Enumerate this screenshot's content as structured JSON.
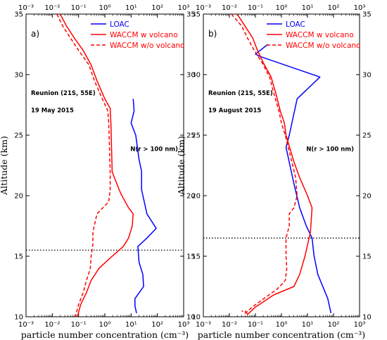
{
  "chart_data": [
    {
      "type": "line",
      "panel_label": "a)",
      "xlabel": "particle number concentration (cm⁻³)",
      "ylabel": "Altitude (km)",
      "x_scale": "log",
      "xlim": [
        0.001,
        1000
      ],
      "ylim": [
        10,
        35
      ],
      "x_ticks": [
        "10⁻³",
        "10⁻²",
        "10⁻¹",
        "10⁰",
        "10¹",
        "10²",
        "10³"
      ],
      "y_ticks": [
        "10",
        "15",
        "20",
        "25",
        "30",
        "35"
      ],
      "legend_position": "top-right",
      "annotations": [
        "Reunion (21S, 55E)",
        "19 May 2015",
        "N(r > 100 nm)"
      ],
      "tropopause_km": 15.5,
      "series": [
        {
          "name": "LOAC",
          "color": "#0000ff",
          "style": "solid",
          "points": [
            [
              12,
              28
            ],
            [
              13,
              27
            ],
            [
              10,
              26
            ],
            [
              15,
              25
            ],
            [
              20,
              23
            ],
            [
              25,
              22
            ],
            [
              25,
              20.5
            ],
            [
              40,
              18.5
            ],
            [
              90,
              17.3
            ],
            [
              40,
              16.5
            ],
            [
              18,
              15.8
            ],
            [
              20,
              14.5
            ],
            [
              28,
              13.5
            ],
            [
              30,
              12.5
            ],
            [
              14,
              11.5
            ],
            [
              14,
              10.9
            ],
            [
              16,
              10.3
            ]
          ]
        },
        {
          "name": "WACCM w volcano",
          "color": "#ff0000",
          "style": "solid",
          "points": [
            [
              0.02,
              35
            ],
            [
              0.035,
              34
            ],
            [
              0.07,
              33
            ],
            [
              0.15,
              32
            ],
            [
              0.3,
              30.8
            ],
            [
              0.5,
              29.5
            ],
            [
              1.0,
              28
            ],
            [
              1.6,
              27.2
            ],
            [
              1.7,
              26
            ],
            [
              1.8,
              24
            ],
            [
              1.9,
              22
            ],
            [
              2.2,
              21.6
            ],
            [
              4,
              20.2
            ],
            [
              8,
              19
            ],
            [
              12,
              18.5
            ],
            [
              11,
              17.5
            ],
            [
              8,
              16.5
            ],
            [
              5,
              15.8
            ],
            [
              1.5,
              14.8
            ],
            [
              0.6,
              14
            ],
            [
              0.3,
              13
            ],
            [
              0.2,
              12
            ],
            [
              0.12,
              11
            ],
            [
              0.09,
              10
            ]
          ]
        },
        {
          "name": "WACCM w/o volcano",
          "color": "#ff0000",
          "style": "dashed",
          "points": [
            [
              0.015,
              35
            ],
            [
              0.025,
              34
            ],
            [
              0.05,
              33
            ],
            [
              0.1,
              32
            ],
            [
              0.25,
              30.8
            ],
            [
              0.4,
              29.5
            ],
            [
              0.8,
              28
            ],
            [
              1.3,
              27
            ],
            [
              1.4,
              26
            ],
            [
              1.5,
              24
            ],
            [
              1.6,
              22
            ],
            [
              1.6,
              20.5
            ],
            [
              1.4,
              19.5
            ],
            [
              0.5,
              18.5
            ],
            [
              0.35,
              17
            ],
            [
              0.35,
              16
            ],
            [
              0.3,
              15
            ],
            [
              0.28,
              14
            ],
            [
              0.2,
              13
            ],
            [
              0.15,
              12
            ],
            [
              0.1,
              11
            ],
            [
              0.075,
              10
            ]
          ]
        }
      ]
    },
    {
      "type": "line",
      "panel_label": "b)",
      "xlabel": "particle number concentration (cm⁻³)",
      "ylabel": "Altitude (km)",
      "x_scale": "log",
      "xlim": [
        0.001,
        1000
      ],
      "ylim": [
        10,
        35
      ],
      "x_ticks": [
        "10⁻³",
        "10⁻²",
        "10⁻¹",
        "10⁰",
        "10¹",
        "10²",
        "10³"
      ],
      "y_ticks": [
        "10",
        "15",
        "20",
        "25",
        "30",
        "35"
      ],
      "legend_position": "top-right",
      "annotations": [
        "Reunion (21S, 55E)",
        "19 August 2015",
        "N(r > 100 nm)"
      ],
      "tropopause_km": 16.5,
      "series": [
        {
          "name": "LOAC",
          "color": "#0000ff",
          "style": "solid",
          "points": [
            [
              0.3,
              32.5
            ],
            [
              0.1,
              31.7
            ],
            [
              0.15,
              31.5
            ],
            [
              30,
              29.8
            ],
            [
              4,
              28
            ],
            [
              2,
              25
            ],
            [
              1.5,
              24
            ],
            [
              3,
              21
            ],
            [
              5,
              19
            ],
            [
              9,
              17.5
            ],
            [
              15,
              16.5
            ],
            [
              18,
              15
            ],
            [
              25,
              13.5
            ],
            [
              60,
              11.5
            ],
            [
              80,
              10.3
            ]
          ]
        },
        {
          "name": "WACCM w volcano",
          "color": "#ff0000",
          "style": "solid",
          "points": [
            [
              0.02,
              35
            ],
            [
              0.04,
              34
            ],
            [
              0.08,
              33
            ],
            [
              0.12,
              32
            ],
            [
              0.2,
              31
            ],
            [
              0.4,
              29.8
            ],
            [
              0.6,
              28.5
            ],
            [
              0.9,
              27
            ],
            [
              1.3,
              26
            ],
            [
              1.5,
              25
            ],
            [
              3,
              22.8
            ],
            [
              5,
              21.5
            ],
            [
              10,
              20
            ],
            [
              15,
              19
            ],
            [
              13,
              17
            ],
            [
              8,
              15
            ],
            [
              5,
              13.5
            ],
            [
              3,
              12.5
            ],
            [
              0.5,
              11.8
            ],
            [
              0.1,
              10.8
            ],
            [
              0.05,
              10.2
            ],
            [
              0.04,
              10.5
            ]
          ]
        },
        {
          "name": "WACCM w/o volcano",
          "color": "#ff0000",
          "style": "dashed",
          "points": [
            [
              0.012,
              35
            ],
            [
              0.03,
              34
            ],
            [
              0.05,
              33
            ],
            [
              0.09,
              32
            ],
            [
              0.18,
              31
            ],
            [
              0.35,
              29.8
            ],
            [
              0.5,
              28.5
            ],
            [
              0.8,
              27
            ],
            [
              1.0,
              26
            ],
            [
              1.4,
              25
            ],
            [
              2.5,
              22.8
            ],
            [
              3.5,
              21.5
            ],
            [
              4,
              20
            ],
            [
              3,
              19
            ],
            [
              2,
              18.5
            ],
            [
              2,
              17.5
            ],
            [
              1.5,
              16.5
            ],
            [
              1.5,
              15
            ],
            [
              1.6,
              14
            ],
            [
              1.4,
              13
            ],
            [
              0.7,
              12.3
            ],
            [
              0.1,
              11
            ],
            [
              0.04,
              10.3
            ],
            [
              0.03,
              10.5
            ]
          ]
        }
      ]
    }
  ]
}
